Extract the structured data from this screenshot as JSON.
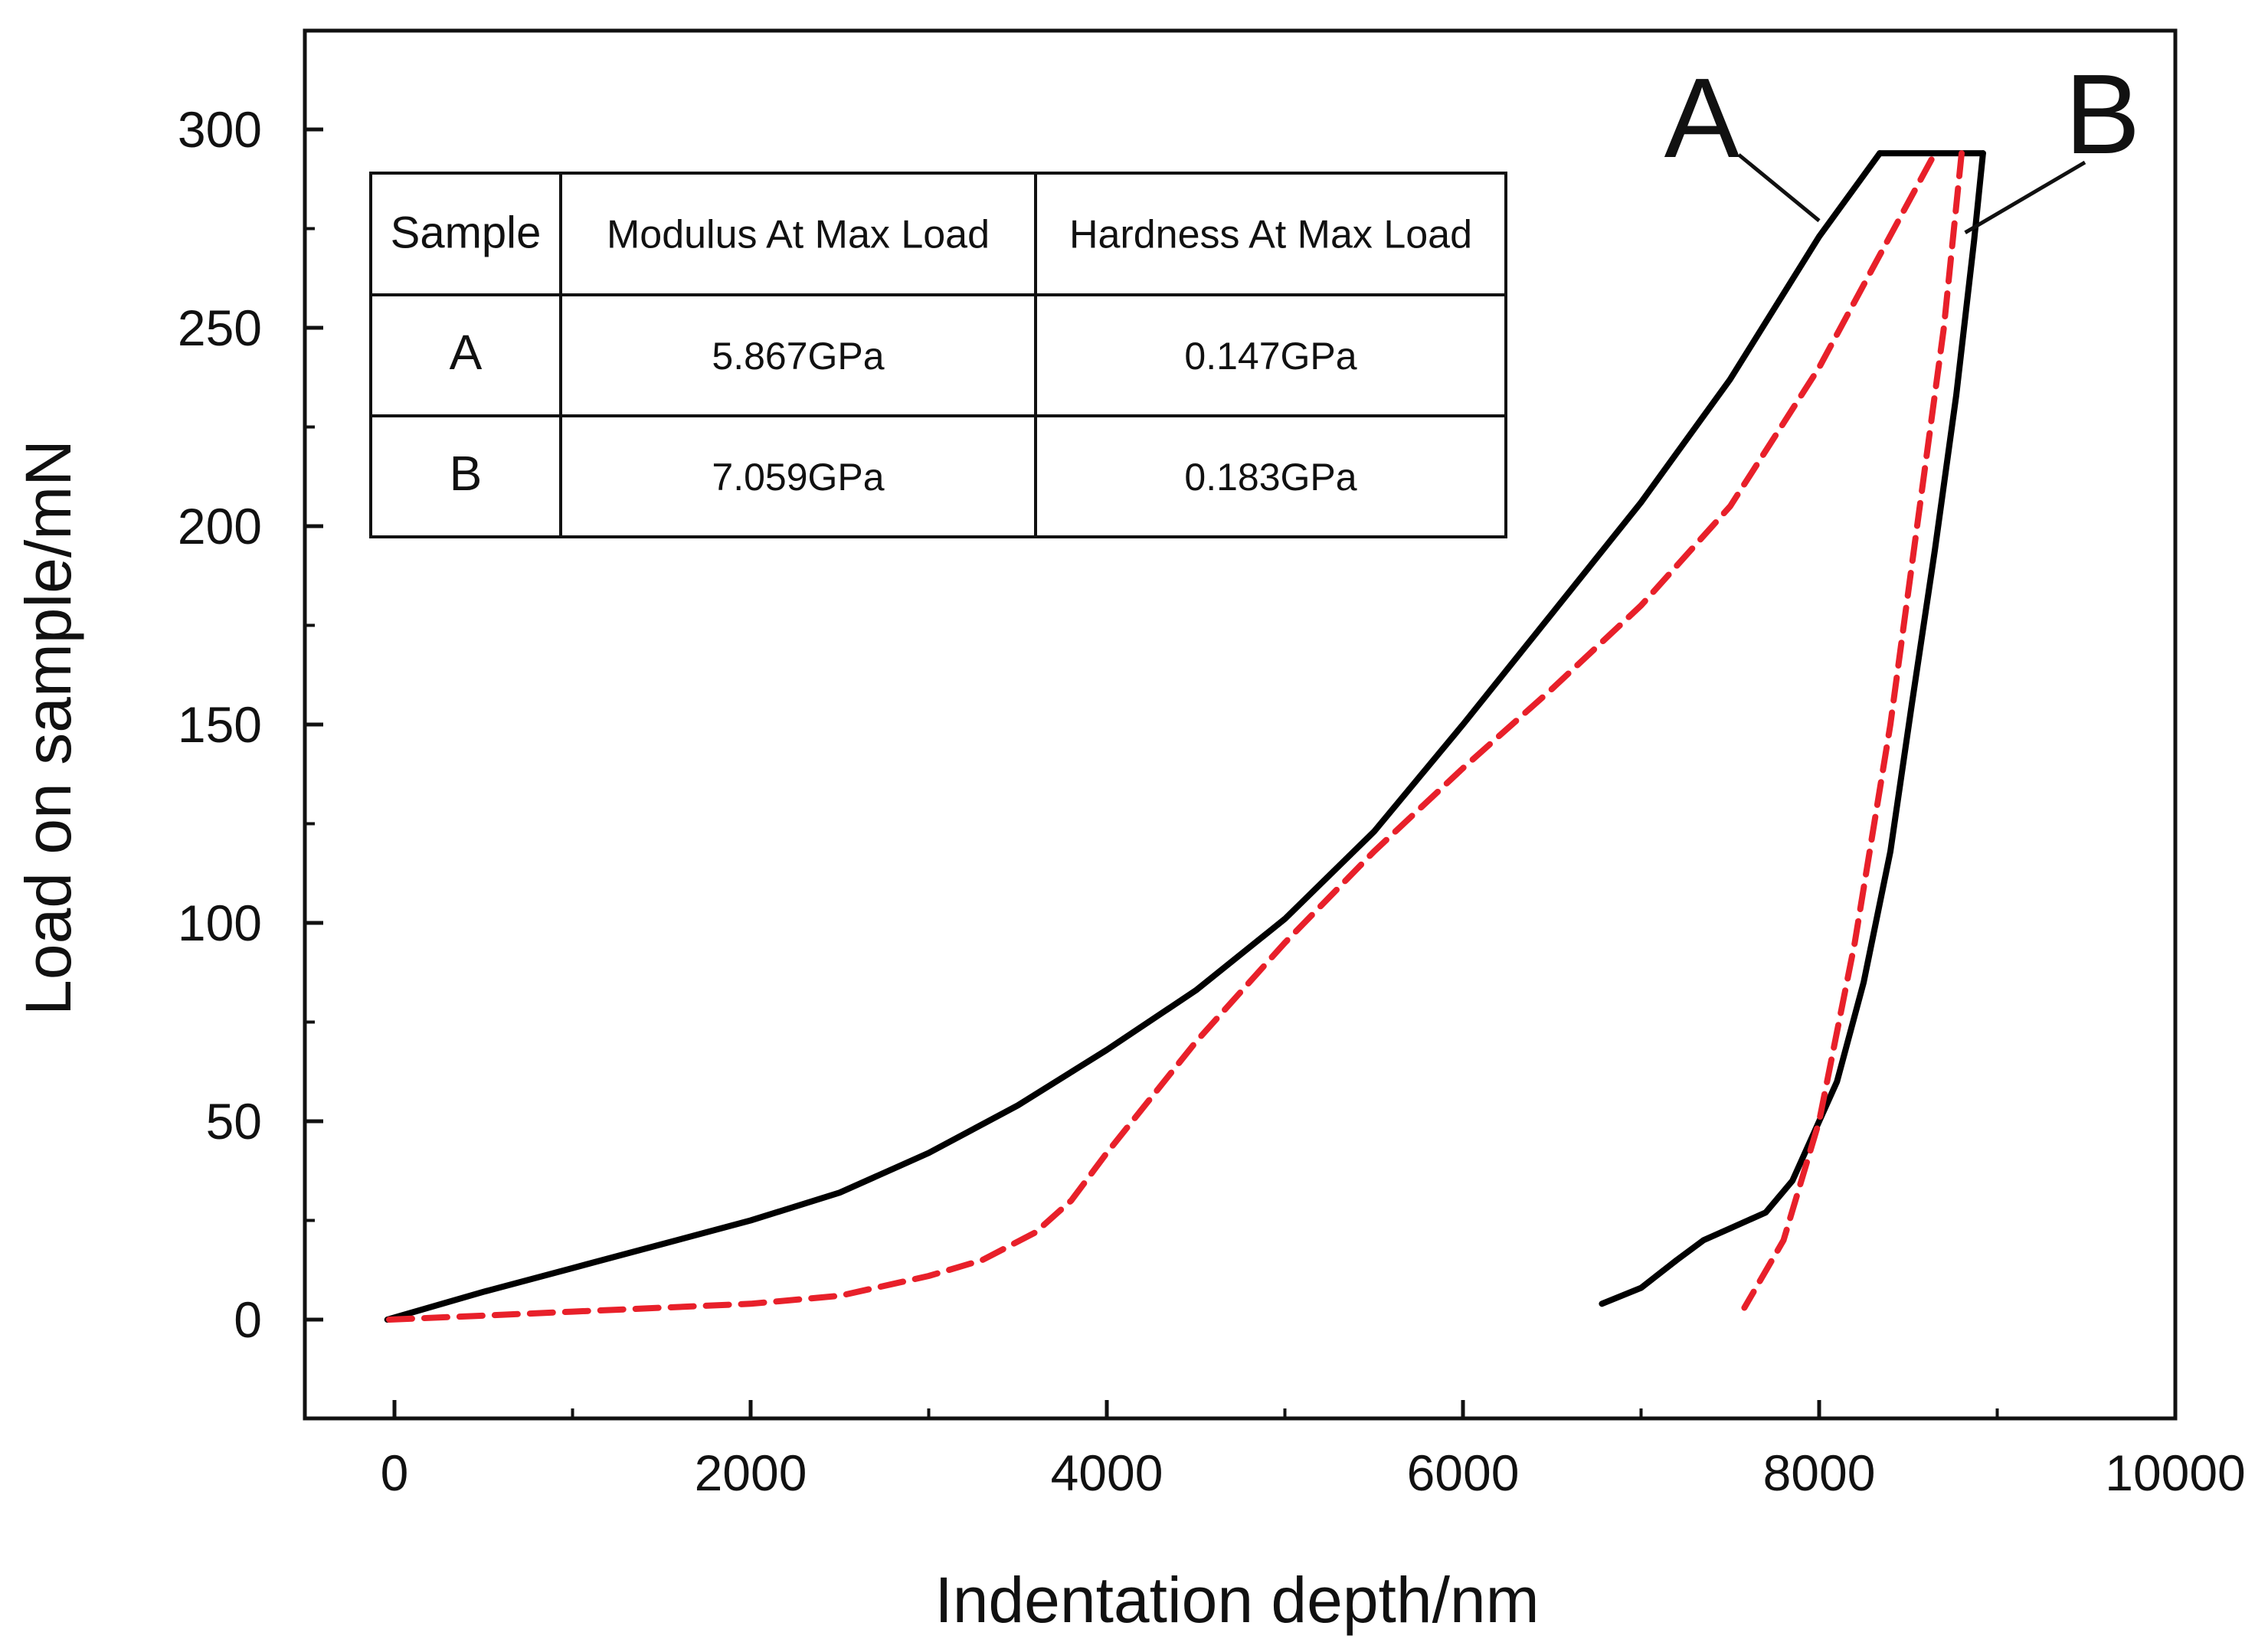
{
  "chart_data": {
    "type": "line",
    "title": "",
    "xlabel": "Indentation depth/nm",
    "ylabel": "Load on sample/mN",
    "xlim": [
      -500,
      10000
    ],
    "ylim": [
      -25,
      325
    ],
    "x_ticks": [
      0,
      2000,
      4000,
      6000,
      8000,
      10000
    ],
    "y_ticks": [
      0,
      50,
      100,
      150,
      200,
      250,
      300
    ],
    "x_tick_labels": [
      "0",
      "2000",
      "4000",
      "6000",
      "8000",
      "10000"
    ],
    "y_tick_labels": [
      "0",
      "50",
      "100",
      "150",
      "200",
      "250",
      "300"
    ],
    "series": [
      {
        "name": "A",
        "color": "#000000",
        "style": "solid",
        "loading": {
          "x": [
            -40,
            500,
            1000,
            1500,
            2000,
            2500,
            3000,
            3500,
            4000,
            4500,
            5000,
            5500,
            6000,
            6500,
            7000,
            7500,
            8000,
            8340
          ],
          "y": [
            0,
            7,
            13,
            19,
            25,
            32,
            42,
            54,
            68,
            83,
            101,
            123,
            150,
            178,
            206,
            237,
            273,
            294
          ]
        },
        "hold": {
          "x": [
            8340,
            8920
          ],
          "y": [
            294,
            294
          ]
        },
        "unloading": {
          "x": [
            8920,
            8870,
            8770,
            8650,
            8520,
            8400,
            8250,
            8100,
            7950,
            7850,
            7700,
            7600,
            7500,
            7350,
            7200,
            7000,
            6780
          ],
          "y": [
            294,
            272,
            233,
            194,
            155,
            118,
            85,
            60,
            45,
            35,
            27,
            25,
            23,
            20,
            15,
            8,
            4
          ]
        }
      },
      {
        "name": "B",
        "color": "#e8202a",
        "style": "dashed",
        "loading": {
          "x": [
            -30,
            500,
            1000,
            1500,
            2000,
            2500,
            3000,
            3300,
            3600,
            3800,
            4000,
            4500,
            5000,
            5500,
            6000,
            6500,
            7000,
            7500,
            8000,
            8300,
            8650
          ],
          "y": [
            0,
            1,
            2,
            3,
            4,
            6,
            11,
            15,
            22,
            30,
            42,
            70,
            95,
            118,
            139,
            159,
            180,
            205,
            240,
            265,
            294
          ]
        },
        "unloading": {
          "x": [
            8800,
            8700,
            8550,
            8400,
            8200,
            8000,
            7800,
            7580
          ],
          "y": [
            294,
            250,
            200,
            150,
            95,
            50,
            20,
            3
          ]
        }
      }
    ],
    "annotations": [
      {
        "text": "A",
        "points_to": {
          "x": 8000,
          "y": 277
        }
      },
      {
        "text": "B",
        "points_to": {
          "x": 8820,
          "y": 274
        }
      }
    ],
    "inset_table": {
      "headers": [
        "Sample",
        "Modulus At Max Load",
        "Hardness At Max Load"
      ],
      "rows": [
        [
          "A",
          "5.867GPa",
          "0.147GPa"
        ],
        [
          "B",
          "7.059GPa",
          "0.183GPa"
        ]
      ]
    }
  }
}
